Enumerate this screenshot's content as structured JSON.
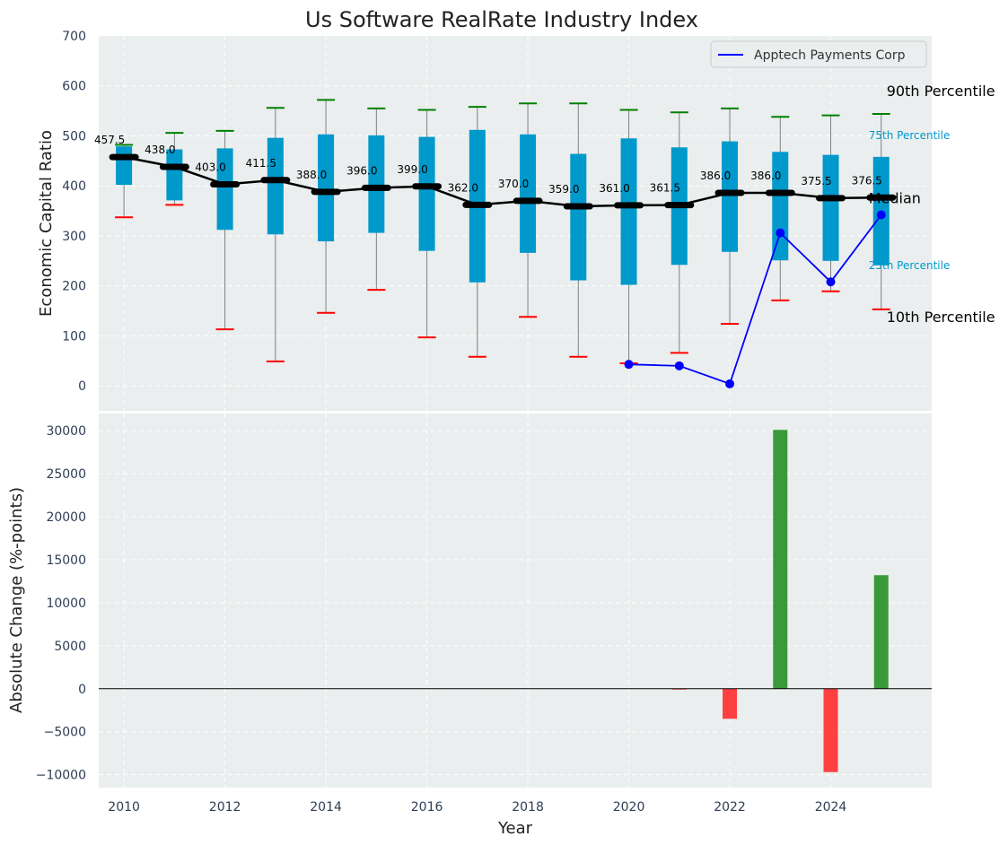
{
  "chart_data": [
    {
      "type": "box",
      "title": "Us Software RealRate Industry Index",
      "ylabel": "Economic Capital Ratio",
      "ylim": [
        -50,
        700
      ],
      "yticks": [
        0,
        100,
        200,
        300,
        400,
        500,
        600,
        700
      ],
      "xlim": [
        2009.5,
        2026.0
      ],
      "grid": true,
      "legend": {
        "position": "top-right",
        "entries": [
          "Apptech Payments Corp"
        ]
      },
      "colors": {
        "box": "#0099CC",
        "median": "#000000",
        "p90": "#008000",
        "p10": "#FF0000",
        "whisker": "#808080",
        "company": "#0000FF",
        "bg": "#EAEEEE"
      },
      "years": [
        2010,
        2011,
        2012,
        2013,
        2014,
        2015,
        2016,
        2017,
        2018,
        2019,
        2020,
        2021,
        2022,
        2023,
        2024,
        2025
      ],
      "median": [
        457.5,
        438.0,
        403.0,
        411.5,
        388.0,
        396.0,
        399.0,
        362.0,
        370.0,
        359.0,
        361.0,
        361.5,
        386.0,
        386.0,
        375.5,
        376.5
      ],
      "median_labels": [
        "457.5",
        "438.0",
        "403.0",
        "411.5",
        "388.0",
        "396.0",
        "399.0",
        "362.0",
        "370.0",
        "359.0",
        "361.0",
        "361.5",
        "386.0",
        "386.0",
        "375.5",
        "376.5"
      ],
      "p25": [
        402,
        371,
        312,
        303,
        289,
        306,
        270,
        207,
        266,
        211,
        202,
        242,
        268,
        251,
        250,
        241
      ],
      "p75": [
        479,
        473,
        475,
        496,
        503,
        501,
        498,
        512,
        503,
        464,
        495,
        477,
        489,
        468,
        462,
        458
      ],
      "p10": [
        337,
        362,
        113,
        49,
        146,
        192,
        97,
        58,
        138,
        58,
        45,
        66,
        124,
        171,
        189,
        153
      ],
      "p90": [
        482,
        506,
        510,
        556,
        572,
        555,
        552,
        558,
        565,
        565,
        552,
        547,
        555,
        538,
        541,
        544
      ],
      "company": {
        "name": "Apptech Payments Corp",
        "years": [
          2020,
          2021,
          2022,
          2023,
          2024,
          2025
        ],
        "values": [
          43,
          40,
          4,
          306,
          208,
          342
        ]
      },
      "annotations": {
        "p90": "90th Percentile",
        "p75": "75th Percentile",
        "median": "Median",
        "p25": "25th Percentile",
        "p10": "10th Percentile"
      }
    },
    {
      "type": "bar",
      "ylabel": "Absolute Change (%-points)",
      "xlabel": "Year",
      "ylim": [
        -11500,
        32000
      ],
      "yticks": [
        -10000,
        -5000,
        0,
        5000,
        10000,
        15000,
        20000,
        25000,
        30000
      ],
      "xticks": [
        2010,
        2012,
        2014,
        2016,
        2018,
        2020,
        2022,
        2024
      ],
      "grid": true,
      "colors": {
        "positive": "#3A9A3A",
        "negative": "#FF4040"
      },
      "years": [
        2021,
        2022,
        2023,
        2024,
        2025
      ],
      "values": [
        -80,
        -3500,
        30100,
        -9700,
        13200
      ]
    }
  ]
}
